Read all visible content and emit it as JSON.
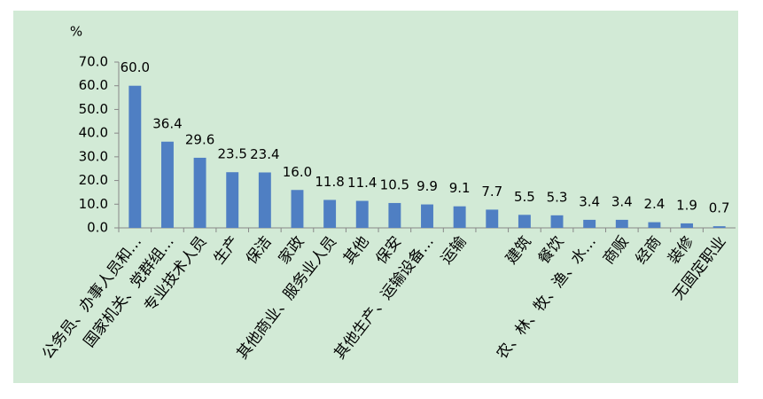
{
  "chart_data": {
    "type": "bar",
    "ylabel": "%",
    "categories": [
      "公务员、办事人员和…",
      "国家机关、党群组…",
      "专业技术人员",
      "生产",
      "保洁",
      "家政",
      "其他商业、服务业人员",
      "其他",
      "保安",
      "其他生产、运输设备…",
      "运输",
      null,
      "建筑",
      "餐饮",
      "农、林、牧、渔、水…",
      "商贩",
      "经商",
      "装修",
      "无固定职业"
    ],
    "values": [
      60.0,
      36.4,
      29.6,
      23.5,
      23.4,
      16.0,
      11.8,
      11.4,
      10.5,
      9.9,
      9.1,
      7.7,
      5.5,
      5.3,
      3.4,
      3.4,
      2.4,
      1.9,
      0.7
    ],
    "value_labels": [
      "60.0",
      "36.4",
      "29.6",
      "23.5",
      "23.4",
      "16.0",
      "11.8",
      "11.4",
      "10.5",
      "9.9",
      "9.1",
      "7.7",
      "5.5",
      "5.3",
      "3.4",
      "3.4",
      "2.4",
      "1.9",
      "0.7"
    ],
    "color": "#4f7fc3",
    "ylim": [
      0,
      70
    ],
    "yticks": [
      {
        "value": 0,
        "label": "0.0"
      },
      {
        "value": 10,
        "label": "10.0"
      },
      {
        "value": 20,
        "label": "20.0"
      },
      {
        "value": 30,
        "label": "30.0"
      },
      {
        "value": 40,
        "label": "40.0"
      },
      {
        "value": 50,
        "label": "50.0"
      },
      {
        "value": 60,
        "label": "60.0"
      },
      {
        "value": 70,
        "label": "70.0"
      }
    ],
    "grid": false
  }
}
